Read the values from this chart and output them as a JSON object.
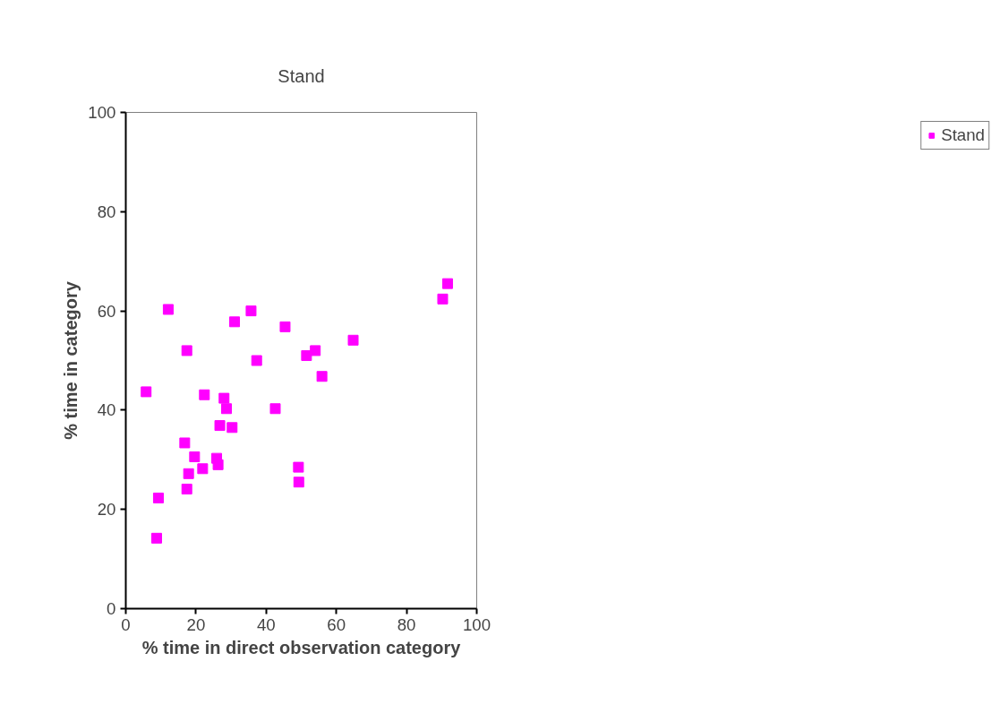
{
  "chart_data": {
    "type": "scatter",
    "title": "Stand",
    "xlabel": "% time in direct observation category",
    "ylabel": "% time in category",
    "x": [
      5.8,
      8.8,
      9.3,
      12.1,
      16.8,
      17.4,
      17.4,
      17.9,
      19.6,
      21.9,
      22.4,
      25.9,
      26.3,
      26.8,
      28.0,
      28.7,
      30.3,
      31.0,
      35.7,
      37.3,
      42.6,
      45.4,
      49.2,
      49.3,
      51.5,
      54.0,
      55.9,
      64.8,
      90.3,
      91.7
    ],
    "series": [
      {
        "name": "Stand",
        "color": "#ff00ff",
        "values": [
          43.7,
          14.2,
          22.3,
          60.3,
          33.4,
          52.0,
          24.1,
          27.2,
          30.6,
          28.2,
          43.1,
          30.3,
          29.0,
          36.9,
          42.4,
          40.3,
          36.5,
          57.8,
          60.0,
          50.0,
          40.3,
          56.8,
          28.5,
          25.5,
          51.0,
          52.0,
          46.8,
          54.1,
          62.4,
          65.5
        ]
      }
    ],
    "xlim": [
      0,
      100
    ],
    "ylim": [
      0,
      100
    ],
    "xticks": [
      0,
      20,
      40,
      60,
      80,
      100
    ],
    "yticks": [
      0,
      20,
      40,
      60,
      80,
      100
    ],
    "grid": false,
    "legend": "right",
    "marker": "square"
  }
}
